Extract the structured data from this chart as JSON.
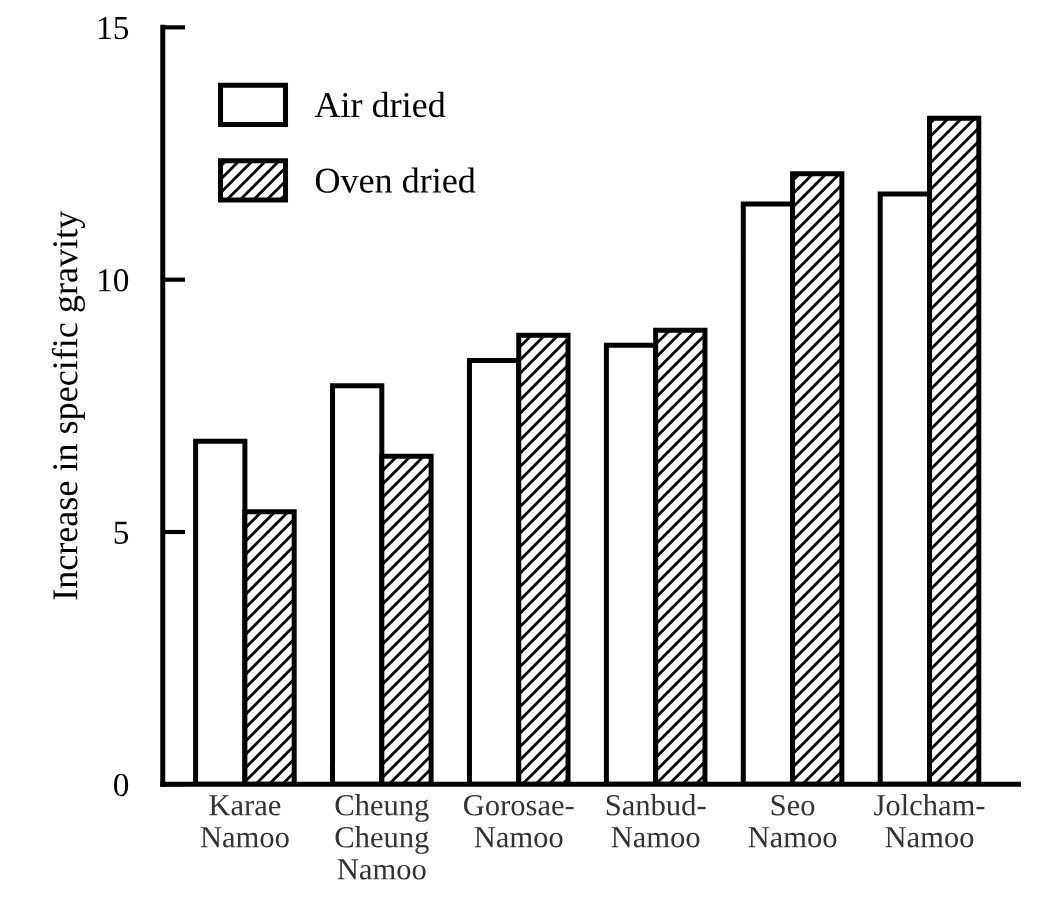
{
  "chart_data": {
    "type": "bar",
    "ylabel": "Increase in specific gravity",
    "categories": [
      "Karae\nNamoo",
      "Cheung\nCheung\nNamoo",
      "Gorosae-\nNamoo",
      "Sanbud-\nNamoo",
      "Seo\nNamoo",
      "Jolcham-\nNamoo"
    ],
    "series": [
      {
        "name": "Air dried",
        "color": "#ffffff",
        "values": [
          6.8,
          7.9,
          8.4,
          8.7,
          11.5,
          11.7
        ]
      },
      {
        "name": "Oven dried",
        "color": "#000000",
        "values": [
          5.4,
          6.5,
          8.9,
          9.0,
          12.1,
          13.2
        ]
      }
    ],
    "ylim": [
      0,
      15
    ],
    "yticks": [
      0,
      5,
      10,
      15
    ],
    "legend": "top left",
    "grid": false
  }
}
